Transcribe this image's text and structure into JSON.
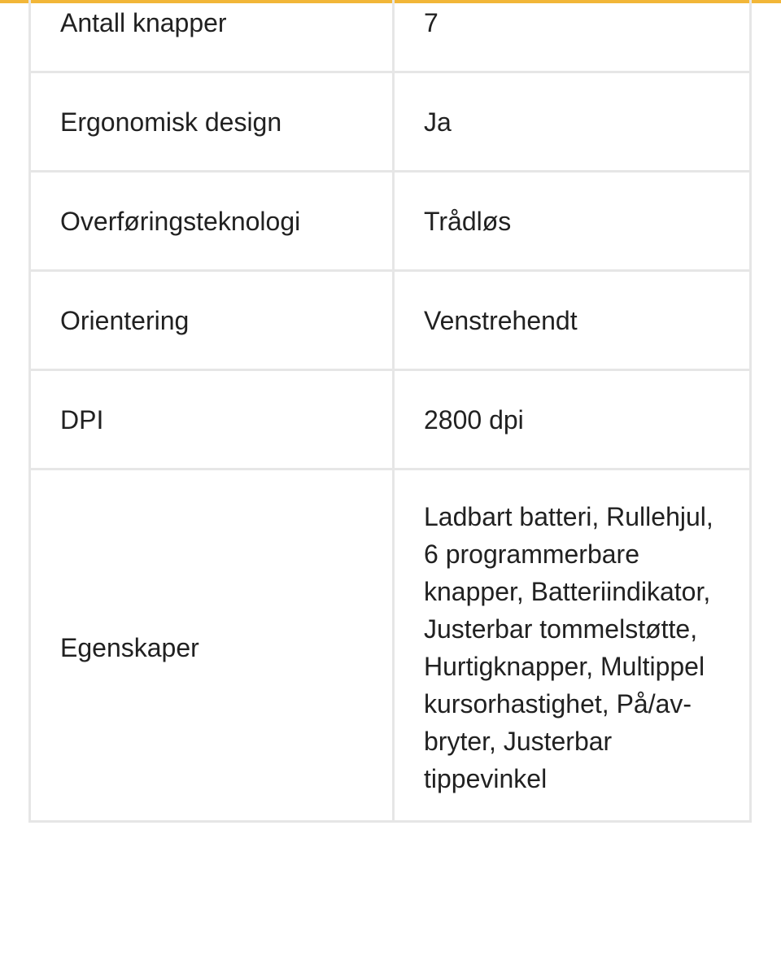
{
  "accent_color": "#f2b638",
  "specs": [
    {
      "label": "Antall knapper",
      "value": "7"
    },
    {
      "label": "Ergonomisk design",
      "value": "Ja"
    },
    {
      "label": "Overføringsteknologi",
      "value": "Trådløs"
    },
    {
      "label": "Orientering",
      "value": "Venstrehendt"
    },
    {
      "label": "DPI",
      "value": "2800 dpi"
    },
    {
      "label": "Egenskaper",
      "value": "Ladbart batteri, Rullehjul, 6 programmerbare knapper, Batteriindikator, Justerbar tommelstøtte, Hurtigknapper, Multippel kursorhastighet, På/av-bryter, Justerbar tippevinkel"
    }
  ]
}
